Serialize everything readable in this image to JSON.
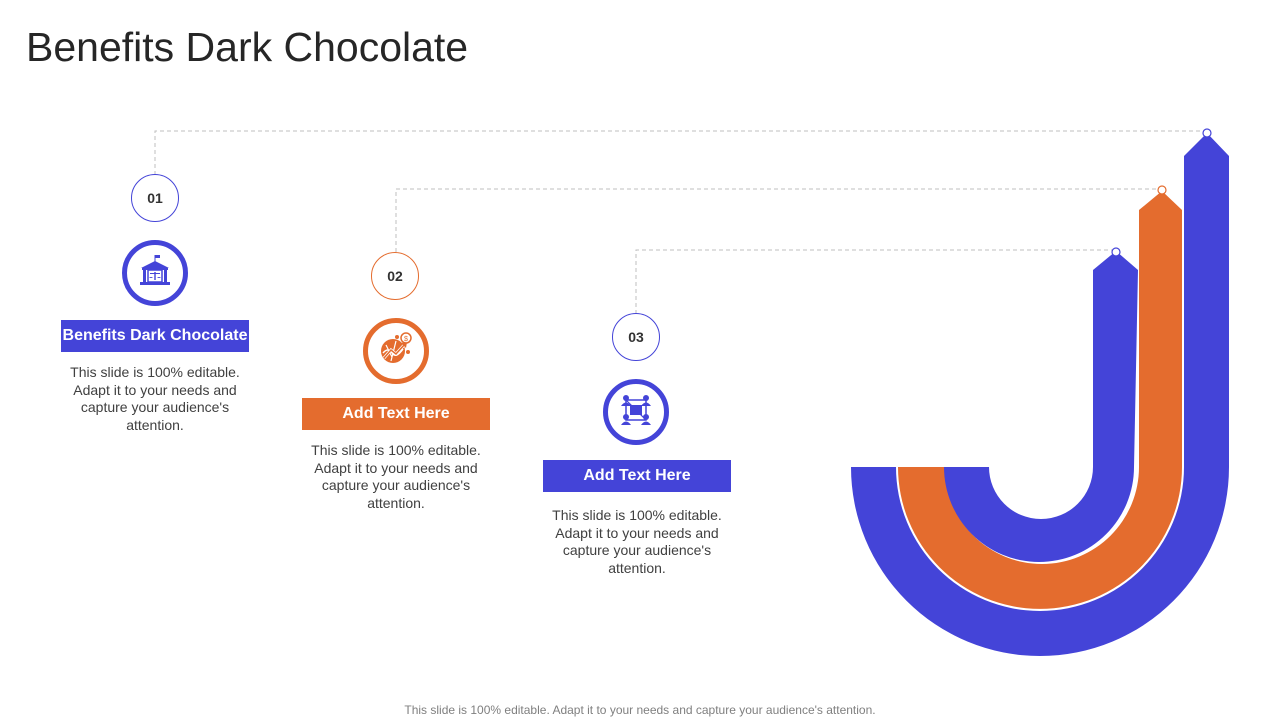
{
  "title": "Benefits Dark Chocolate",
  "colors": {
    "blue": "#4444D8",
    "orange": "#E46C2E",
    "connector": "#BFBFBF"
  },
  "steps": [
    {
      "number": "01",
      "label": "Benefits Dark Chocolate",
      "description": "This slide is 100% editable. Adapt it to your needs and capture your audience's attention.",
      "icon": "courthouse-icon",
      "color": "#4444D8"
    },
    {
      "number": "02",
      "label": "Add Text Here",
      "description": "This slide is 100% editable. Adapt it to your needs and capture your audience's attention.",
      "icon": "globe-growth-icon",
      "color": "#E46C2E"
    },
    {
      "number": "03",
      "label": "Add Text Here",
      "description": "This slide is 100% editable. Adapt it to your needs and capture your audience's attention.",
      "icon": "network-users-icon",
      "color": "#4444D8"
    }
  ],
  "footer": "This slide is 100% editable. Adapt it to your needs and capture your audience's attention."
}
